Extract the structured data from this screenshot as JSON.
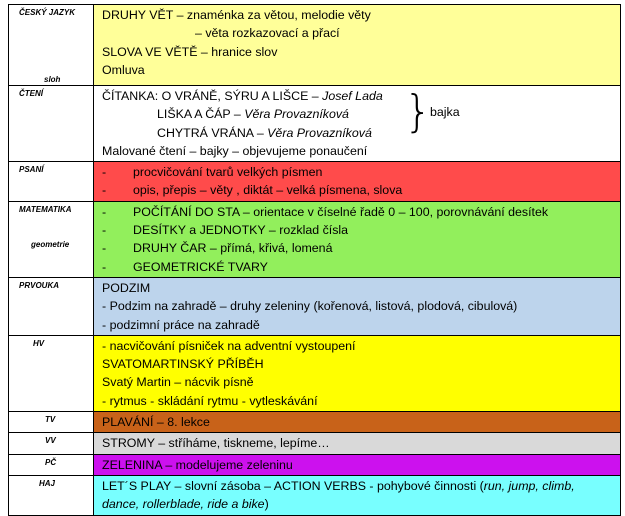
{
  "rows": {
    "cesky_jazyk": {
      "subject": "ČESKÝ JAZYK",
      "sub": "sloh",
      "lines": [
        "DRUHY VĚT – znaménka za větou, melodie věty",
        "– věta rozkazovací a přací",
        "SLOVA VE VĚTĚ – hranice slov",
        "Omluva"
      ]
    },
    "cteni": {
      "subject": "ČTENÍ",
      "l1_title": "ČÍTANKA:  O VRÁNĚ, SÝRU A LIŠCE – ",
      "l1_author": "Josef Lada",
      "l2_title": "LIŠKA A ČÁP – ",
      "l2_author": "Věra Provazníková",
      "l3_title": "CHYTRÁ VRÁNA – ",
      "l3_author": "Věra Provazníková",
      "brace_label": "bajka",
      "l4": "Malované čtení – bajky – objevujeme ponaučení"
    },
    "psani": {
      "subject": "PSANÍ",
      "bullet": "-",
      "lines": [
        "procvičování tvarů velkých písmen",
        "opis, přepis – věty , diktát – velká písmena, slova"
      ]
    },
    "matematika": {
      "subject": "MATEMATIKA",
      "sub": "geometrie",
      "bullet": "-",
      "lines": [
        "POČÍTÁNÍ DO STA – orientace v číselné řadě 0 – 100, porovnávání desítek",
        "DESÍTKY a JEDNOTKY – rozklad čísla",
        "DRUHY ČAR – přímá, křivá, lomená",
        "GEOMETRICKÉ TVARY"
      ]
    },
    "prvouka": {
      "subject": "PRVOUKA",
      "lines": [
        "PODZIM",
        "- Podzim na zahradě – druhy zeleniny (kořenová, listová, plodová, cibulová)",
        "- podzimní práce na zahradě"
      ]
    },
    "hv": {
      "subject": "HV",
      "lines": [
        "- nacvičování písniček na adventní vystoupení",
        "SVATOMARTINSKÝ PŘÍBĚH",
        "Svatý Martin – nácvik písně",
        "- rytmus  - skládání rytmu - vytleskávání"
      ]
    },
    "tv": {
      "subject": "TV",
      "line": "PLAVÁNÍ – 8. lekce"
    },
    "vv": {
      "subject": "VV",
      "line": "STROMY – stříháme, tiskneme, lepíme…"
    },
    "pc": {
      "subject": "PČ",
      "line": "ZELENINA – modelujeme zeleninu"
    },
    "haj": {
      "subject": "HAJ",
      "l1_text": "LET´S PLAY – slovní zásoba – ACTION VERBS - pohybové činnosti (",
      "l1_italic": "run, jump, climb,",
      "l2_italic": "dance, rollerblade, ride a bike",
      "l2_end": ")"
    }
  }
}
